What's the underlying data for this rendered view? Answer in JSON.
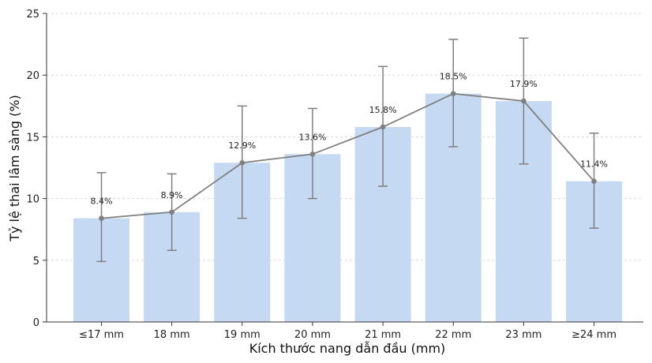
{
  "chart_data": {
    "type": "bar",
    "title": "",
    "xlabel": "Kích thước nang dẫn đầu (mm)",
    "ylabel": "Tỷ lệ thai lâm sàng (%)",
    "ylim": [
      0,
      25
    ],
    "yticks": [
      "0",
      "5",
      "10",
      "15",
      "20",
      "25"
    ],
    "grid": "horizontal-dashed",
    "categories": [
      "≤17 mm",
      "18 mm",
      "19 mm",
      "20 mm",
      "21 mm",
      "22 mm",
      "23 mm",
      "≥24 mm"
    ],
    "values": [
      8.4,
      8.9,
      12.9,
      13.6,
      15.8,
      18.5,
      17.9,
      11.4
    ],
    "error_low": [
      4.9,
      5.8,
      8.4,
      10.0,
      11.0,
      14.2,
      12.8,
      7.6
    ],
    "error_high": [
      12.1,
      12.0,
      17.5,
      17.3,
      20.7,
      22.9,
      23.0,
      15.3
    ],
    "data_labels": [
      "8.4%",
      "8.9%",
      "12.9%",
      "13.6%",
      "15.8%",
      "18.5%",
      "17.9%",
      "11.4%"
    ],
    "overlay": "line-with-markers",
    "colors": {
      "bar": "#c5d9f3",
      "line": "#808080",
      "grid": "#d9d9d9",
      "axis": "#333333"
    }
  }
}
